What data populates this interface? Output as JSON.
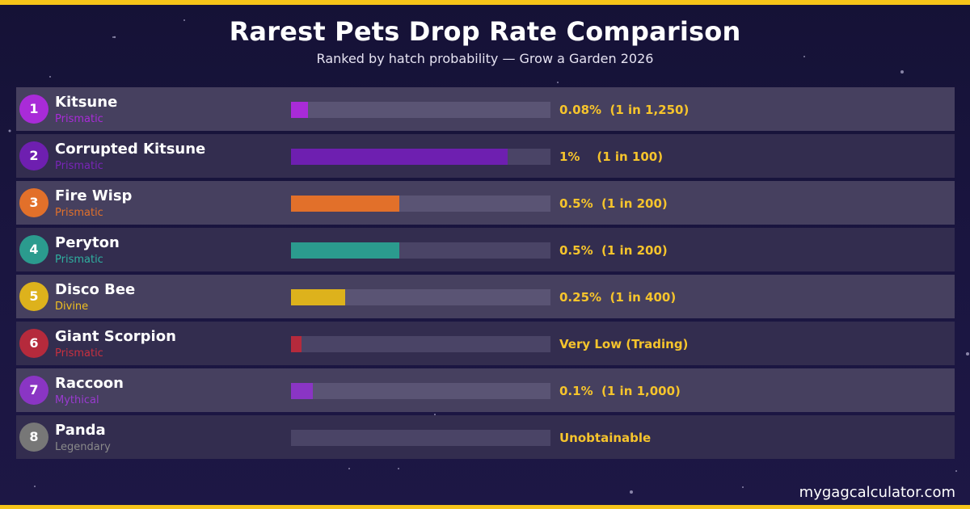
{
  "header": {
    "title": "Rarest Pets Drop Rate Comparison",
    "subtitle": "Ranked by hatch probability — Grow a Garden 2026"
  },
  "footer": {
    "site": "mygagcalculator.com"
  },
  "colors": {
    "accent": "#f6c419",
    "rate_text": "#f6c42c",
    "background": "#1a1540"
  },
  "chart_data": {
    "type": "bar",
    "orientation": "horizontal",
    "xlim": [
      0,
      1.2
    ],
    "categories": [
      "Kitsune",
      "Corrupted Kitsune",
      "Fire Wisp",
      "Peryton",
      "Disco Bee",
      "Giant Scorpion",
      "Raccoon",
      "Panda"
    ],
    "values": [
      0.08,
      1.0,
      0.5,
      0.5,
      0.25,
      0.05,
      0.1,
      0
    ],
    "rows": [
      {
        "rank": "1",
        "name": "Kitsune",
        "rarity": "Prismatic",
        "rate": "0.08%  (1 in 1,250)",
        "value": 0.08,
        "color": "#a92bd8",
        "rarity_color": "#a92bd8"
      },
      {
        "rank": "2",
        "name": "Corrupted Kitsune",
        "rarity": "Prismatic",
        "rate": "1%    (1 in 100)",
        "value": 1.0,
        "color": "#6e1fb0",
        "rarity_color": "#7a25b8"
      },
      {
        "rank": "3",
        "name": "Fire Wisp",
        "rarity": "Prismatic",
        "rate": "0.5%  (1 in 200)",
        "value": 0.5,
        "color": "#e2702a",
        "rarity_color": "#e2702a"
      },
      {
        "rank": "4",
        "name": "Peryton",
        "rarity": "Prismatic",
        "rate": "0.5%  (1 in 200)",
        "value": 0.5,
        "color": "#2b9b8e",
        "rarity_color": "#2fb0a0"
      },
      {
        "rank": "5",
        "name": "Disco Bee",
        "rarity": "Divine",
        "rate": "0.25%  (1 in 400)",
        "value": 0.25,
        "color": "#ddb21c",
        "rarity_color": "#f0c020"
      },
      {
        "rank": "6",
        "name": "Giant Scorpion",
        "rarity": "Prismatic",
        "rate": "Very Low (Trading)",
        "value": 0.05,
        "color": "#b52a3c",
        "rarity_color": "#c8303f"
      },
      {
        "rank": "7",
        "name": "Raccoon",
        "rarity": "Mythical",
        "rate": "0.1%  (1 in 1,000)",
        "value": 0.1,
        "color": "#8a35c4",
        "rarity_color": "#9a3ad0"
      },
      {
        "rank": "8",
        "name": "Panda",
        "rarity": "Legendary",
        "rate": "Unobtainable",
        "value": 0,
        "color": "#777777",
        "rarity_color": "#8a8a8a"
      }
    ]
  }
}
